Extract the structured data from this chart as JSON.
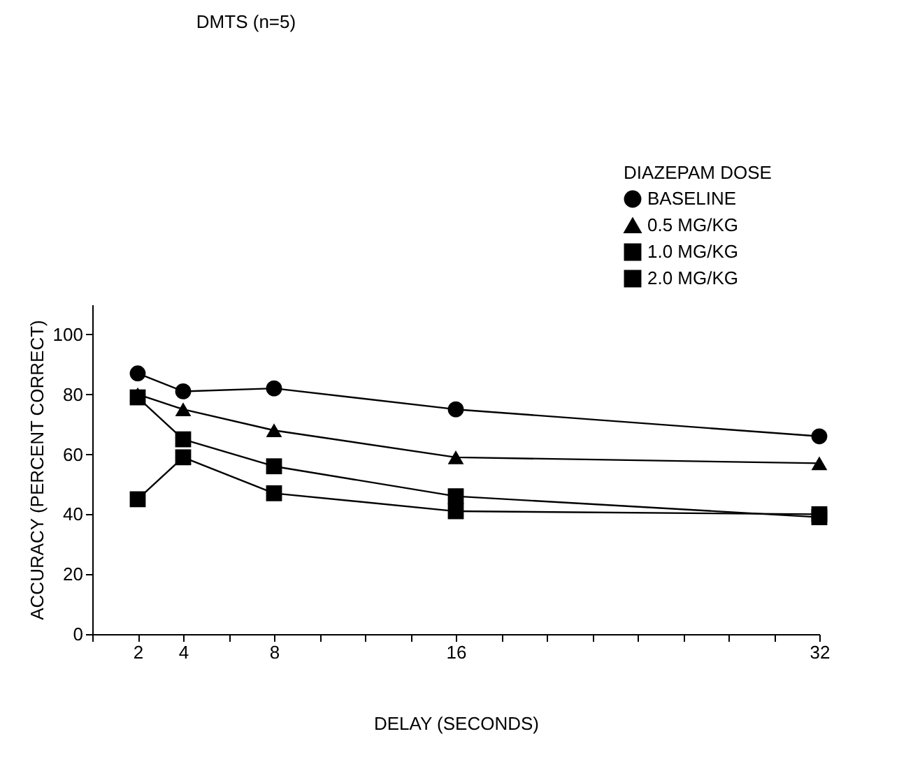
{
  "chart_data": {
    "type": "line",
    "title": "DMTS (n=5)",
    "xlabel": "DELAY (SECONDS)",
    "ylabel": "ACCURACY (PERCENT CORRECT)",
    "legend_title": "DIAZEPAM DOSE",
    "x": [
      2,
      4,
      8,
      16,
      32
    ],
    "series": [
      {
        "name": "BASELINE",
        "color": "#000000",
        "marker": "circle",
        "values": [
          87,
          81,
          82,
          75,
          66
        ]
      },
      {
        "name": "0.5 MG/KG",
        "color": "#000000",
        "marker": "triangle",
        "values": [
          80,
          75,
          68,
          59,
          57
        ]
      },
      {
        "name": "1.0 MG/KG",
        "color": "#000000",
        "marker": "square",
        "values": [
          79,
          65,
          56,
          46,
          39
        ]
      },
      {
        "name": "2.0 MG/KG",
        "color": "#000000",
        "marker": "square",
        "values": [
          45,
          59,
          47,
          41,
          40
        ]
      }
    ],
    "xlim": [
      0,
      32
    ],
    "xticks": [
      {
        "value": 0,
        "label": null
      },
      2,
      4,
      {
        "value": 6,
        "label": null
      },
      8,
      {
        "value": 10,
        "label": null
      },
      {
        "value": 12,
        "label": null
      },
      {
        "value": 14,
        "label": null
      },
      16,
      {
        "value": 18,
        "label": null
      },
      {
        "value": 20,
        "label": null
      },
      {
        "value": 22,
        "label": null
      },
      {
        "value": 24,
        "label": null
      },
      {
        "value": 26,
        "label": null
      },
      {
        "value": 28,
        "label": null
      },
      {
        "value": 30,
        "label": null
      },
      32
    ],
    "ylim": [
      0,
      110
    ],
    "yticks": [
      0,
      20,
      40,
      60,
      80,
      100
    ],
    "grid": false,
    "legend": "top right"
  }
}
